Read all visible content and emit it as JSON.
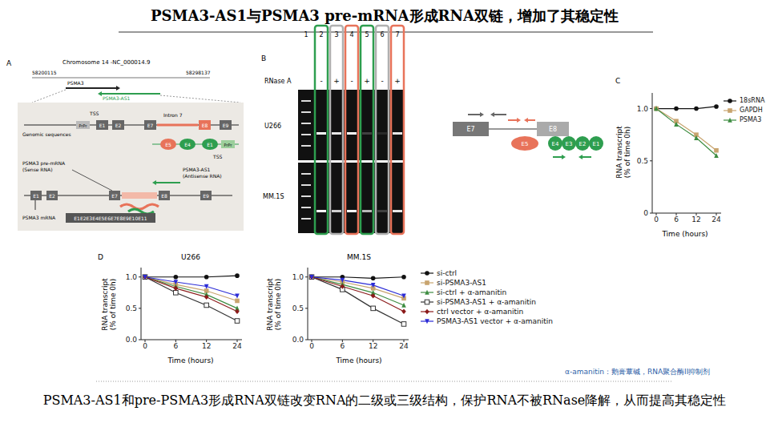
{
  "title": "PSMA3-AS1与PSMA3 pre-mRNA形成RNA双链，增加了其稳定性",
  "caption": "PSMA3-AS1和pre-PSMA3形成RNA双链改变RNA的二级或三级结构，保护RNA不被RNase降解，从而提高其稳定性",
  "footnote": "α-amanitin：鹅膏蕈碱，RNA聚合酶II抑制剂",
  "panel_labels": [
    "A",
    "B",
    "C",
    "D"
  ],
  "panel_A": {
    "chromosome": "Chromosome 14 -NC_000014.9",
    "coords": [
      58200115,
      58298137
    ],
    "genes": [
      "PSMA3",
      "PSMA3-AS1"
    ],
    "tss": "TSS",
    "promoter": "PrPr",
    "intron": "Intron 7",
    "genomic_label": "Genomic sequences",
    "sense_exons": [
      "E1",
      "E2",
      "E7",
      "E8",
      "E9"
    ],
    "antisense_exons": [
      "E5",
      "E4",
      "E1"
    ],
    "sense_rna": [
      "PSMA3 pre-mRNA",
      "(Sense RNA)"
    ],
    "antisense_rna": [
      "PSMA3-AS1",
      "(Antisense RNA)"
    ],
    "pre_mrna_exons": [
      "E1",
      "E2",
      "E7",
      "E8",
      "E9"
    ],
    "mrna_label": "PSMA3 mRNA",
    "mrna": "E1E2E3E4E5E6E7E8E9E10E11"
  },
  "panel_B": {
    "treatment": "RNase A",
    "lanes": [
      1,
      2,
      3,
      4,
      5,
      6,
      7
    ],
    "signs": [
      null,
      "-",
      "+",
      "-",
      "+",
      "-",
      "+"
    ],
    "colors": [
      null,
      "#2e9e4f",
      "#b0b0b0",
      "#e8735a",
      "#2e9e4f",
      "#b0b0b0",
      "#e8735a"
    ],
    "cell_lines": [
      "U266",
      "MM.1S"
    ],
    "schematic": {
      "sense_exons": [
        "E7",
        "E8"
      ],
      "antisense_exons": [
        "E5",
        "E4",
        "E3",
        "E2",
        "E1"
      ]
    }
  },
  "chart_data": [
    {
      "type": "line",
      "categories": [
        "0",
        "6",
        "12",
        "24"
      ],
      "xlabel": "Time (hours)",
      "ylabel": [
        "RNA transcript",
        "(% of time 0h)"
      ],
      "ylim": [
        0,
        1.15
      ],
      "yticks": [
        0,
        0.5,
        {
          "value": 1,
          "label": "1.0"
        }
      ],
      "legend": "right",
      "series": [
        {
          "name": "18sRNA",
          "color": "#111111",
          "marker": "circle",
          "values": [
            1.0,
            1.0,
            1.0,
            1.02
          ]
        },
        {
          "name": "GAPDH",
          "color": "#c8a46e",
          "marker": "square",
          "values": [
            1.0,
            0.88,
            0.75,
            0.6
          ]
        },
        {
          "name": "PSMA3",
          "color": "#3d8c40",
          "marker": "triangle",
          "values": [
            1.0,
            0.85,
            0.72,
            0.55
          ]
        }
      ]
    },
    {
      "type": "line",
      "title": "U266",
      "categories": [
        "0",
        "6",
        "12",
        "24"
      ],
      "xlabel": "Time (hours)",
      "ylabel": [
        "RNA transcript",
        "(% of time 0h)"
      ],
      "ylim": [
        0,
        1.15
      ],
      "yticks": [
        {
          "value": 0,
          "label": "0.0"
        },
        0.5,
        {
          "value": 1,
          "label": "1.0"
        }
      ],
      "series": [
        {
          "name": "si-ctrl",
          "color": "#111111",
          "marker": "circle",
          "values": [
            1.0,
            1.0,
            1.0,
            1.02
          ]
        },
        {
          "name": "si-PSMA3-AS1",
          "color": "#c8a46e",
          "marker": "square",
          "values": [
            1.0,
            0.88,
            0.78,
            0.62
          ]
        },
        {
          "name": "si-ctrl + α-amanitin",
          "color": "#3d8c40",
          "marker": "triangle",
          "values": [
            1.0,
            0.85,
            0.72,
            0.5
          ]
        },
        {
          "name": "si-PSMA3-AS1 + α-amanitin",
          "color": "#333333",
          "marker": "square-open",
          "values": [
            1.0,
            0.75,
            0.55,
            0.3
          ]
        },
        {
          "name": "ctrl vector + α-amanitin",
          "color": "#8b1a1a",
          "marker": "diamond",
          "values": [
            1.0,
            0.82,
            0.68,
            0.45
          ]
        },
        {
          "name": "PSMA3-AS1 vector + α-amanitin",
          "color": "#2b2bd6",
          "marker": "triangle-down",
          "values": [
            1.0,
            0.92,
            0.85,
            0.7
          ]
        }
      ]
    },
    {
      "type": "line",
      "title": "MM.1S",
      "categories": [
        "0",
        "6",
        "12",
        "24"
      ],
      "xlabel": "Time (hours)",
      "ylabel": [
        "RNA transcript",
        "(% of time 0h)"
      ],
      "ylim": [
        0,
        1.15
      ],
      "yticks": [
        {
          "value": 0,
          "label": "0.0"
        },
        0.5,
        {
          "value": 1,
          "label": "1.0"
        }
      ],
      "legend": "right",
      "series": [
        {
          "name": "si-ctrl",
          "color": "#111111",
          "marker": "circle",
          "values": [
            1.0,
            1.0,
            0.98,
            1.0
          ]
        },
        {
          "name": "si-PSMA3-AS1",
          "color": "#c8a46e",
          "marker": "square",
          "values": [
            1.0,
            0.92,
            0.82,
            0.66
          ]
        },
        {
          "name": "si-ctrl + α-amanitin",
          "color": "#3d8c40",
          "marker": "triangle",
          "values": [
            1.0,
            0.88,
            0.75,
            0.55
          ]
        },
        {
          "name": "si-PSMA3-AS1 + α-amanitin",
          "color": "#333333",
          "marker": "square-open",
          "values": [
            1.0,
            0.8,
            0.5,
            0.25
          ]
        },
        {
          "name": "ctrl vector + α-amanitin",
          "color": "#8b1a1a",
          "marker": "diamond",
          "values": [
            1.0,
            0.85,
            0.7,
            0.45
          ]
        },
        {
          "name": "PSMA3-AS1 vector + α-amanitin",
          "color": "#2b2bd6",
          "marker": "triangle-down",
          "values": [
            1.0,
            0.95,
            0.87,
            0.7
          ]
        }
      ]
    }
  ]
}
